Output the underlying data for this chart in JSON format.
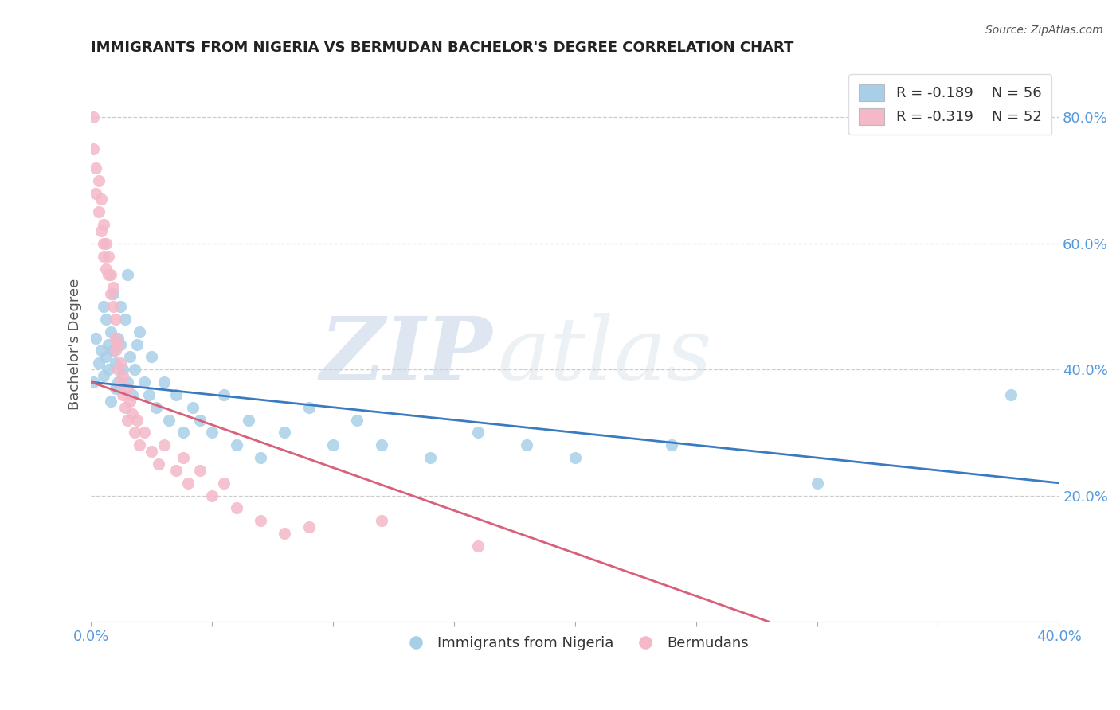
{
  "title": "IMMIGRANTS FROM NIGERIA VS BERMUDAN BACHELOR'S DEGREE CORRELATION CHART",
  "source": "Source: ZipAtlas.com",
  "ylabel": "Bachelor's Degree",
  "xlim": [
    0.0,
    0.4
  ],
  "ylim": [
    0.0,
    0.88
  ],
  "xticks": [
    0.0,
    0.05,
    0.1,
    0.15,
    0.2,
    0.25,
    0.3,
    0.35,
    0.4
  ],
  "xticklabels": [
    "0.0%",
    "",
    "",
    "",
    "",
    "",
    "",
    "",
    "40.0%"
  ],
  "yticks_right": [
    0.2,
    0.4,
    0.6,
    0.8
  ],
  "ytick_right_labels": [
    "20.0%",
    "40.0%",
    "60.0%",
    "80.0%"
  ],
  "blue_color": "#a8cfe8",
  "pink_color": "#f4b8c8",
  "blue_line_color": "#3a7bbf",
  "pink_line_color": "#d9607a",
  "legend_R1": "R = -0.189",
  "legend_N1": "N = 56",
  "legend_R2": "R = -0.319",
  "legend_N2": "N = 52",
  "watermark_zip": "ZIP",
  "watermark_atlas": "atlas",
  "blue_scatter_x": [
    0.001,
    0.002,
    0.003,
    0.004,
    0.005,
    0.005,
    0.006,
    0.006,
    0.007,
    0.007,
    0.008,
    0.008,
    0.009,
    0.009,
    0.01,
    0.01,
    0.011,
    0.011,
    0.012,
    0.012,
    0.013,
    0.014,
    0.015,
    0.015,
    0.016,
    0.017,
    0.018,
    0.019,
    0.02,
    0.022,
    0.024,
    0.025,
    0.027,
    0.03,
    0.032,
    0.035,
    0.038,
    0.042,
    0.045,
    0.05,
    0.055,
    0.06,
    0.065,
    0.07,
    0.08,
    0.09,
    0.1,
    0.11,
    0.12,
    0.14,
    0.16,
    0.18,
    0.2,
    0.24,
    0.3,
    0.38
  ],
  "blue_scatter_y": [
    0.38,
    0.45,
    0.41,
    0.43,
    0.39,
    0.5,
    0.42,
    0.48,
    0.44,
    0.4,
    0.46,
    0.35,
    0.43,
    0.52,
    0.41,
    0.37,
    0.45,
    0.38,
    0.44,
    0.5,
    0.4,
    0.48,
    0.55,
    0.38,
    0.42,
    0.36,
    0.4,
    0.44,
    0.46,
    0.38,
    0.36,
    0.42,
    0.34,
    0.38,
    0.32,
    0.36,
    0.3,
    0.34,
    0.32,
    0.3,
    0.36,
    0.28,
    0.32,
    0.26,
    0.3,
    0.34,
    0.28,
    0.32,
    0.28,
    0.26,
    0.3,
    0.28,
    0.26,
    0.28,
    0.22,
    0.36
  ],
  "pink_scatter_x": [
    0.001,
    0.001,
    0.002,
    0.002,
    0.003,
    0.003,
    0.004,
    0.004,
    0.005,
    0.005,
    0.005,
    0.006,
    0.006,
    0.007,
    0.007,
    0.008,
    0.008,
    0.009,
    0.009,
    0.01,
    0.01,
    0.01,
    0.011,
    0.011,
    0.012,
    0.012,
    0.013,
    0.013,
    0.014,
    0.015,
    0.015,
    0.016,
    0.017,
    0.018,
    0.019,
    0.02,
    0.022,
    0.025,
    0.028,
    0.03,
    0.035,
    0.038,
    0.04,
    0.045,
    0.05,
    0.055,
    0.06,
    0.07,
    0.08,
    0.09,
    0.12,
    0.16
  ],
  "pink_scatter_y": [
    0.8,
    0.75,
    0.72,
    0.68,
    0.65,
    0.7,
    0.62,
    0.67,
    0.6,
    0.58,
    0.63,
    0.56,
    0.6,
    0.55,
    0.58,
    0.52,
    0.55,
    0.5,
    0.53,
    0.48,
    0.43,
    0.45,
    0.4,
    0.44,
    0.38,
    0.41,
    0.36,
    0.39,
    0.34,
    0.37,
    0.32,
    0.35,
    0.33,
    0.3,
    0.32,
    0.28,
    0.3,
    0.27,
    0.25,
    0.28,
    0.24,
    0.26,
    0.22,
    0.24,
    0.2,
    0.22,
    0.18,
    0.16,
    0.14,
    0.15,
    0.16,
    0.12
  ],
  "background_color": "#ffffff",
  "grid_color": "#cccccc",
  "title_color": "#222222",
  "axis_label_color": "#555555",
  "right_axis_color": "#5599dd",
  "tick_color": "#5599dd"
}
